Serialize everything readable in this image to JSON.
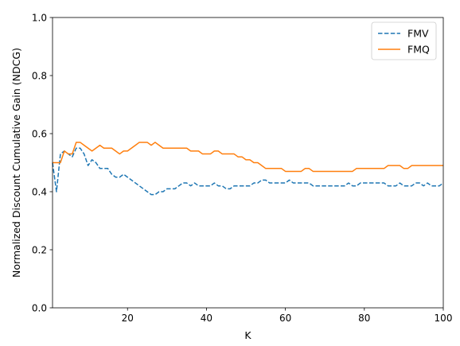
{
  "chart_data": {
    "type": "line",
    "title": "",
    "xlabel": "K",
    "ylabel": "Normalized Discount Cumulative Gain (NDCG)",
    "xlim": [
      1,
      100
    ],
    "ylim": [
      0.0,
      1.0
    ],
    "xticks": [
      20,
      40,
      60,
      80,
      100
    ],
    "yticks": [
      0.0,
      0.2,
      0.4,
      0.6,
      0.8,
      1.0
    ],
    "xtick_labels": [
      "20",
      "40",
      "60",
      "80",
      "100"
    ],
    "ytick_labels": [
      "0.0",
      "0.2",
      "0.4",
      "0.6",
      "0.8",
      "1.0"
    ],
    "grid": false,
    "legend_position": "top-right",
    "series": [
      {
        "name": "FMV",
        "color": "#1f77b4",
        "style": "dashed",
        "x": [
          1,
          2,
          3,
          4,
          5,
          6,
          7,
          8,
          9,
          10,
          11,
          12,
          13,
          14,
          15,
          16,
          17,
          18,
          19,
          20,
          21,
          22,
          23,
          24,
          25,
          26,
          27,
          28,
          29,
          30,
          31,
          32,
          33,
          34,
          35,
          36,
          37,
          38,
          39,
          40,
          41,
          42,
          43,
          44,
          45,
          46,
          47,
          48,
          49,
          50,
          51,
          52,
          53,
          54,
          55,
          56,
          57,
          58,
          59,
          60,
          61,
          62,
          63,
          64,
          65,
          66,
          67,
          68,
          69,
          70,
          71,
          72,
          73,
          74,
          75,
          76,
          77,
          78,
          79,
          80,
          81,
          82,
          83,
          84,
          85,
          86,
          87,
          88,
          89,
          90,
          91,
          92,
          93,
          94,
          95,
          96,
          97,
          98,
          99,
          100
        ],
        "y": [
          0.5,
          0.4,
          0.53,
          0.54,
          0.53,
          0.52,
          0.55,
          0.55,
          0.53,
          0.49,
          0.51,
          0.5,
          0.48,
          0.48,
          0.48,
          0.46,
          0.45,
          0.45,
          0.46,
          0.45,
          0.44,
          0.43,
          0.42,
          0.41,
          0.4,
          0.39,
          0.39,
          0.4,
          0.4,
          0.41,
          0.41,
          0.41,
          0.42,
          0.43,
          0.43,
          0.42,
          0.43,
          0.42,
          0.42,
          0.42,
          0.42,
          0.43,
          0.42,
          0.42,
          0.41,
          0.41,
          0.42,
          0.42,
          0.42,
          0.42,
          0.42,
          0.43,
          0.43,
          0.44,
          0.44,
          0.43,
          0.43,
          0.43,
          0.43,
          0.43,
          0.44,
          0.43,
          0.43,
          0.43,
          0.43,
          0.43,
          0.42,
          0.42,
          0.42,
          0.42,
          0.42,
          0.42,
          0.42,
          0.42,
          0.42,
          0.43,
          0.42,
          0.42,
          0.43,
          0.43,
          0.43,
          0.43,
          0.43,
          0.43,
          0.43,
          0.42,
          0.42,
          0.42,
          0.43,
          0.42,
          0.42,
          0.42,
          0.43,
          0.43,
          0.42,
          0.43,
          0.42,
          0.42,
          0.42,
          0.43
        ]
      },
      {
        "name": "FMQ",
        "color": "#ff7f0e",
        "style": "solid",
        "x": [
          1,
          2,
          3,
          4,
          5,
          6,
          7,
          8,
          9,
          10,
          11,
          12,
          13,
          14,
          15,
          16,
          17,
          18,
          19,
          20,
          21,
          22,
          23,
          24,
          25,
          26,
          27,
          28,
          29,
          30,
          31,
          32,
          33,
          34,
          35,
          36,
          37,
          38,
          39,
          40,
          41,
          42,
          43,
          44,
          45,
          46,
          47,
          48,
          49,
          50,
          51,
          52,
          53,
          54,
          55,
          56,
          57,
          58,
          59,
          60,
          61,
          62,
          63,
          64,
          65,
          66,
          67,
          68,
          69,
          70,
          71,
          72,
          73,
          74,
          75,
          76,
          77,
          78,
          79,
          80,
          81,
          82,
          83,
          84,
          85,
          86,
          87,
          88,
          89,
          90,
          91,
          92,
          93,
          94,
          95,
          96,
          97,
          98,
          99,
          100
        ],
        "y": [
          0.5,
          0.5,
          0.5,
          0.54,
          0.53,
          0.53,
          0.57,
          0.57,
          0.56,
          0.55,
          0.54,
          0.55,
          0.56,
          0.55,
          0.55,
          0.55,
          0.54,
          0.53,
          0.54,
          0.54,
          0.55,
          0.56,
          0.57,
          0.57,
          0.57,
          0.56,
          0.57,
          0.56,
          0.55,
          0.55,
          0.55,
          0.55,
          0.55,
          0.55,
          0.55,
          0.54,
          0.54,
          0.54,
          0.53,
          0.53,
          0.53,
          0.54,
          0.54,
          0.53,
          0.53,
          0.53,
          0.53,
          0.52,
          0.52,
          0.51,
          0.51,
          0.5,
          0.5,
          0.49,
          0.48,
          0.48,
          0.48,
          0.48,
          0.48,
          0.47,
          0.47,
          0.47,
          0.47,
          0.47,
          0.48,
          0.48,
          0.47,
          0.47,
          0.47,
          0.47,
          0.47,
          0.47,
          0.47,
          0.47,
          0.47,
          0.47,
          0.47,
          0.48,
          0.48,
          0.48,
          0.48,
          0.48,
          0.48,
          0.48,
          0.48,
          0.49,
          0.49,
          0.49,
          0.49,
          0.48,
          0.48,
          0.49,
          0.49,
          0.49,
          0.49,
          0.49,
          0.49,
          0.49,
          0.49,
          0.49
        ]
      }
    ]
  }
}
